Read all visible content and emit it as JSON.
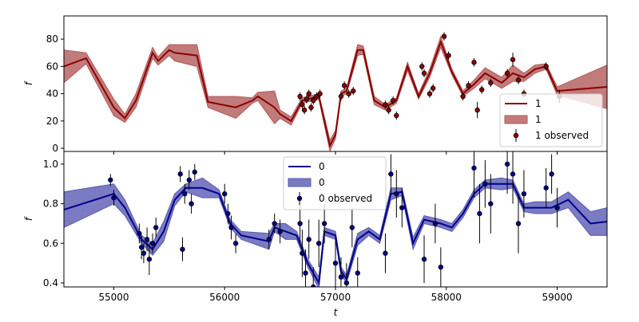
{
  "chart_data": [
    {
      "type": "line",
      "ylabel": "f",
      "xlim": [
        54550,
        59450
      ],
      "ylim": [
        -2.3,
        97
      ],
      "yticks": [
        0,
        20,
        40,
        60,
        80
      ],
      "legend": "lower right",
      "series": [
        {
          "name": "1",
          "color": "#8b0000",
          "x": [
            54550,
            54750,
            55000,
            55100,
            55200,
            55350,
            55400,
            55500,
            55550,
            55750,
            55850,
            56100,
            56250,
            56300,
            56450,
            56500,
            56600,
            56700,
            56850,
            56900,
            56950,
            57000,
            57050,
            57100,
            57200,
            57250,
            57350,
            57450,
            57550,
            57650,
            57750,
            57850,
            57950,
            58050,
            58150,
            58250,
            58350,
            58500,
            58600,
            58700,
            58800,
            58900,
            59000,
            59450
          ],
          "values": [
            60,
            66,
            30,
            22,
            35,
            70,
            64,
            72,
            70,
            68,
            34,
            30,
            35,
            38,
            30,
            25,
            20,
            35,
            38,
            20,
            2,
            10,
            40,
            42,
            72,
            72,
            35,
            30,
            35,
            60,
            38,
            55,
            78,
            56,
            40,
            47,
            55,
            48,
            55,
            52,
            58,
            60,
            42,
            45
          ]
        },
        {
          "name": "1",
          "color": "#b35a5a",
          "lower": [
            48,
            62,
            24,
            19,
            30,
            66,
            61,
            68,
            64,
            60,
            30,
            22,
            33,
            35,
            18,
            22,
            17,
            33,
            36,
            17,
            -2,
            7,
            38,
            40,
            68,
            69,
            32,
            28,
            33,
            57,
            36,
            52,
            74,
            54,
            38,
            44,
            51,
            44,
            49,
            49,
            55,
            58,
            39,
            29
          ],
          "upper": [
            72,
            70,
            36,
            25,
            40,
            74,
            67,
            76,
            76,
            76,
            38,
            38,
            37,
            41,
            42,
            28,
            23,
            37,
            40,
            23,
            6,
            13,
            42,
            44,
            76,
            75,
            38,
            32,
            37,
            63,
            40,
            58,
            82,
            58,
            42,
            50,
            59,
            52,
            61,
            55,
            61,
            62,
            45,
            61
          ]
        },
        {
          "name": "1 observed",
          "color": "#8b0000",
          "x": [
            56680,
            56700,
            56720,
            56740,
            56760,
            56780,
            56800,
            56830,
            56860,
            57050,
            57080,
            57120,
            57160,
            57450,
            57480,
            57520,
            57550,
            57780,
            57800,
            57850,
            57880,
            57980,
            58020,
            58150,
            58200,
            58250,
            58280,
            58320,
            58400,
            58550,
            58600,
            58650,
            58700,
            58900,
            59020
          ],
          "values": [
            38,
            32,
            28,
            36,
            40,
            30,
            35,
            38,
            40,
            38,
            46,
            40,
            42,
            32,
            28,
            35,
            24,
            60,
            55,
            40,
            44,
            82,
            68,
            38,
            46,
            63,
            28,
            43,
            48,
            55,
            65,
            50,
            40,
            60,
            38
          ],
          "errors": [
            3,
            3,
            3,
            3,
            3,
            3,
            3,
            3,
            3,
            3,
            3,
            3,
            3,
            3,
            3,
            3,
            3,
            3,
            3,
            3,
            3,
            3,
            3,
            3,
            3,
            3,
            6,
            3,
            3,
            3,
            5,
            3,
            3,
            3,
            5
          ]
        }
      ]
    },
    {
      "type": "line",
      "ylabel": "f",
      "xlabel": "t",
      "xlim": [
        54550,
        59450
      ],
      "ylim": [
        0.38,
        1.064
      ],
      "yticks": [
        0.4,
        0.6,
        0.8,
        {
          "value": 1,
          "label": "1.0"
        }
      ],
      "xticks": [
        55000,
        56000,
        57000,
        58000,
        59000
      ],
      "legend": "upper center",
      "series": [
        {
          "name": "0",
          "color": "#00008b",
          "x": [
            54550,
            55000,
            55100,
            55250,
            55350,
            55450,
            55550,
            55650,
            55800,
            55950,
            56050,
            56150,
            56400,
            56450,
            56550,
            56650,
            56750,
            56850,
            56900,
            57000,
            57050,
            57100,
            57200,
            57300,
            57400,
            57500,
            57600,
            57700,
            57800,
            57950,
            58050,
            58150,
            58250,
            58350,
            58500,
            58600,
            58700,
            58800,
            58950,
            59100,
            59300,
            59450
          ],
          "values": [
            0.77,
            0.85,
            0.78,
            0.62,
            0.57,
            0.66,
            0.82,
            0.88,
            0.88,
            0.85,
            0.7,
            0.64,
            0.61,
            0.68,
            0.66,
            0.64,
            0.5,
            0.4,
            0.66,
            0.64,
            0.46,
            0.42,
            0.62,
            0.66,
            0.62,
            0.85,
            0.86,
            0.6,
            0.72,
            0.7,
            0.68,
            0.75,
            0.85,
            0.9,
            0.9,
            0.9,
            0.78,
            0.78,
            0.78,
            0.82,
            0.7,
            0.71
          ]
        },
        {
          "name": "0",
          "color": "#5a5ab4",
          "lower": [
            0.68,
            0.8,
            0.74,
            0.6,
            0.54,
            0.61,
            0.79,
            0.86,
            0.83,
            0.83,
            0.68,
            0.62,
            0.57,
            0.66,
            0.62,
            0.62,
            0.48,
            0.37,
            0.64,
            0.62,
            0.44,
            0.4,
            0.59,
            0.64,
            0.6,
            0.82,
            0.84,
            0.57,
            0.7,
            0.68,
            0.66,
            0.73,
            0.83,
            0.88,
            0.87,
            0.88,
            0.76,
            0.75,
            0.75,
            0.78,
            0.64,
            0.64
          ],
          "upper": [
            0.86,
            0.9,
            0.82,
            0.64,
            0.6,
            0.71,
            0.85,
            0.9,
            0.93,
            0.87,
            0.72,
            0.66,
            0.65,
            0.7,
            0.7,
            0.66,
            0.52,
            0.43,
            0.68,
            0.66,
            0.48,
            0.44,
            0.65,
            0.68,
            0.64,
            0.88,
            0.88,
            0.63,
            0.74,
            0.72,
            0.7,
            0.77,
            0.87,
            0.92,
            0.93,
            0.92,
            0.8,
            0.81,
            0.81,
            0.86,
            0.76,
            0.78
          ]
        },
        {
          "name": "0 observed",
          "color": "#00008b",
          "x": [
            54970,
            55000,
            55230,
            55250,
            55270,
            55300,
            55320,
            55350,
            55380,
            55600,
            55640,
            55680,
            55700,
            55730,
            55620,
            56000,
            56030,
            56060,
            56100,
            56400,
            56450,
            56500,
            56680,
            56700,
            56730,
            56760,
            56800,
            56850,
            56900,
            57000,
            57050,
            57100,
            57150,
            57200,
            57450,
            57500,
            57550,
            57600,
            57800,
            57900,
            57950,
            58250,
            58300,
            58350,
            58400,
            58550,
            58600,
            58650,
            58700,
            58900,
            58950,
            59000
          ],
          "values": [
            0.92,
            0.83,
            0.65,
            0.58,
            0.55,
            0.62,
            0.52,
            0.6,
            0.68,
            0.95,
            0.85,
            0.92,
            0.8,
            0.96,
            0.57,
            0.85,
            0.75,
            0.68,
            0.6,
            0.62,
            0.7,
            0.66,
            0.7,
            0.55,
            0.45,
            0.62,
            0.38,
            0.6,
            0.7,
            0.5,
            0.43,
            0.4,
            0.68,
            0.45,
            0.55,
            0.95,
            0.85,
            0.78,
            0.52,
            0.7,
            0.48,
            0.98,
            0.75,
            0.9,
            0.8,
            1.0,
            0.95,
            0.7,
            0.85,
            0.88,
            0.95,
            0.78
          ],
          "errors": [
            0.03,
            0.04,
            0.05,
            0.06,
            0.05,
            0.06,
            0.08,
            0.05,
            0.05,
            0.04,
            0.05,
            0.05,
            0.05,
            0.04,
            0.06,
            0.05,
            0.05,
            0.06,
            0.05,
            0.05,
            0.05,
            0.06,
            0.1,
            0.12,
            0.12,
            0.1,
            0.1,
            0.12,
            0.1,
            0.12,
            0.1,
            0.1,
            0.1,
            0.08,
            0.1,
            0.1,
            0.12,
            0.1,
            0.12,
            0.1,
            0.1,
            0.15,
            0.15,
            0.12,
            0.15,
            0.15,
            0.15,
            0.15,
            0.12,
            0.1,
            0.1,
            0.1
          ]
        }
      ]
    }
  ]
}
